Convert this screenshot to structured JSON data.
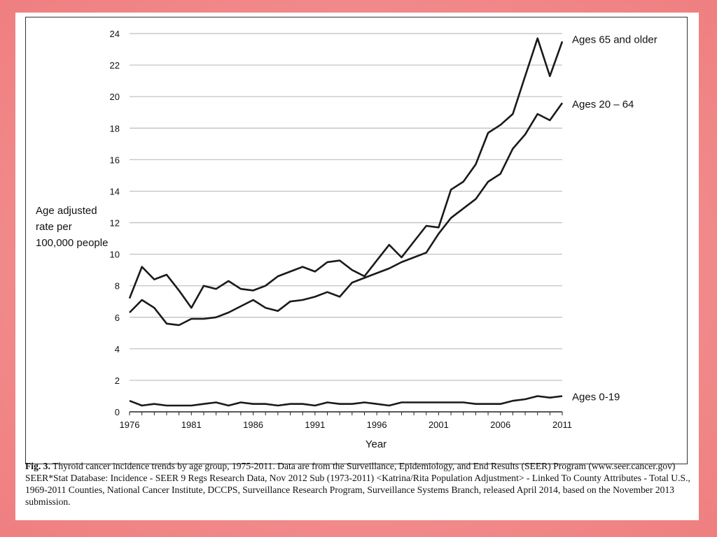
{
  "chart_data": {
    "type": "line",
    "xlabel": "Year",
    "ylabel_lines": [
      "Age adjusted",
      "rate per",
      "100,000 people"
    ],
    "x": [
      1976,
      1977,
      1978,
      1979,
      1980,
      1981,
      1982,
      1983,
      1984,
      1985,
      1986,
      1987,
      1988,
      1989,
      1990,
      1991,
      1992,
      1993,
      1994,
      1995,
      1996,
      1997,
      1998,
      1999,
      2000,
      2001,
      2002,
      2003,
      2004,
      2005,
      2006,
      2007,
      2008,
      2009,
      2010,
      2011
    ],
    "xticks": [
      1976,
      1981,
      1986,
      1991,
      1996,
      2001,
      2006,
      2011
    ],
    "xlim": [
      1976,
      2011
    ],
    "ylim": [
      0,
      24
    ],
    "yticks": [
      0,
      2,
      4,
      6,
      8,
      10,
      12,
      14,
      16,
      18,
      20,
      22,
      24
    ],
    "grid": true,
    "series": [
      {
        "name": "Ages 65 and older",
        "values": [
          7.2,
          9.2,
          8.4,
          8.7,
          7.7,
          6.6,
          8.0,
          7.8,
          8.3,
          7.8,
          7.7,
          8.0,
          8.6,
          8.9,
          9.2,
          8.9,
          9.5,
          9.6,
          9.0,
          8.6,
          9.6,
          10.6,
          9.8,
          10.8,
          11.8,
          11.7,
          14.1,
          14.6,
          15.7,
          17.7,
          18.2,
          18.9,
          21.3,
          23.7,
          21.3,
          23.5
        ]
      },
      {
        "name": "Ages 20 – 64",
        "values": [
          6.3,
          7.1,
          6.6,
          5.6,
          5.5,
          5.9,
          5.9,
          6.0,
          6.3,
          6.7,
          7.1,
          6.6,
          6.4,
          7.0,
          7.1,
          7.3,
          7.6,
          7.3,
          8.2,
          8.5,
          8.8,
          9.1,
          9.5,
          9.8,
          10.1,
          11.3,
          12.3,
          12.9,
          13.5,
          14.6,
          15.1,
          16.7,
          17.6,
          18.9,
          18.5,
          19.6
        ]
      },
      {
        "name": "Ages 0-19",
        "values": [
          0.7,
          0.4,
          0.5,
          0.4,
          0.4,
          0.4,
          0.5,
          0.6,
          0.4,
          0.6,
          0.5,
          0.5,
          0.4,
          0.5,
          0.5,
          0.4,
          0.6,
          0.5,
          0.5,
          0.6,
          0.5,
          0.4,
          0.6,
          0.6,
          0.6,
          0.6,
          0.6,
          0.6,
          0.5,
          0.5,
          0.5,
          0.7,
          0.8,
          1.0,
          0.9,
          1.0
        ]
      }
    ]
  },
  "caption": {
    "fig_label": "Fig. 3.",
    "text": " Thyroid cancer incidence trends by age group, 1975-2011. Data are from the Surveillance, Epidemiology, and End Results (SEER) Program (www.seer.cancer.gov) SEER*Stat Database: Incidence - SEER 9 Regs Research Data, Nov 2012 Sub (1973-2011) <Katrina/Rita Population Adjustment> - Linked To County Attributes - Total U.S., 1969-2011 Counties, National Cancer Institute, DCCPS, Surveillance Research Program, Surveillance Systems Branch, released April 2014, based on the November 2013 submission."
  },
  "colors": {
    "line": "#1a1a1a",
    "grid": "#bdbdbd",
    "background_border": "#f28b8c"
  }
}
